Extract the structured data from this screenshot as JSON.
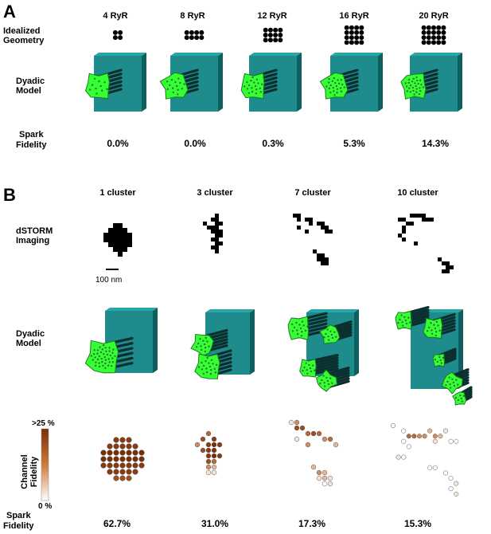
{
  "panel_a": {
    "label": "A",
    "columns": [
      "4 RyR",
      "8 RyR",
      "12 RyR",
      "16 RyR",
      "20 RyR"
    ],
    "row_geometry": [
      "Idealized",
      "Geometry"
    ],
    "row_model": [
      "Dyadic",
      "Model"
    ],
    "row_spark": [
      "Spark",
      "Fidelity"
    ],
    "spark_values": [
      "0.0%",
      "0.0%",
      "0.3%",
      "5.3%",
      "14.3%"
    ]
  },
  "panel_b": {
    "label": "B",
    "columns": [
      "1 cluster",
      "3 cluster",
      "7 cluster",
      "10 cluster"
    ],
    "row_imaging": [
      "dSTORM",
      "Imaging"
    ],
    "scale_bar_label": "100 nm",
    "row_model": [
      "Dyadic",
      "Model"
    ],
    "row_channel": [
      "Channel",
      "Fidelity"
    ],
    "colorbar_max": ">25 %",
    "colorbar_min": "0 %",
    "row_spark": [
      "Spark",
      "Fidelity"
    ],
    "spark_values": [
      "62.7%",
      "31.0%",
      "17.3%",
      "15.3%"
    ]
  },
  "colors": {
    "membrane": "#1e8c8c",
    "membrane_dark": "#0f5f60",
    "cluster": "#33ff33",
    "cluster_edge": "#1c7a1c",
    "fidelity_high": "#7a2e05",
    "fidelity_low": "#ffffff"
  }
}
